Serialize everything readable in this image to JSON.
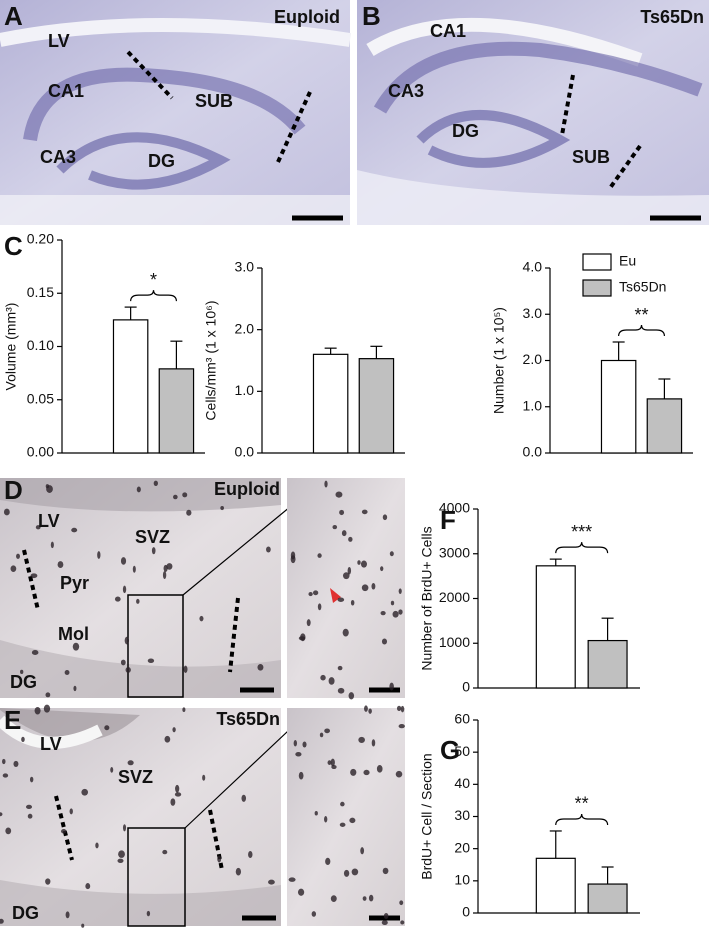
{
  "panels": [
    {
      "label": "A",
      "title": "Euploid",
      "regions": [
        "LV",
        "CA1",
        "SUB",
        "CA3",
        "DG"
      ]
    },
    {
      "label": "B",
      "title": "Ts65Dn",
      "regions": [
        "CA1",
        "CA3",
        "DG",
        "SUB"
      ]
    },
    {
      "label": "D",
      "title": "Euploid",
      "regions": [
        "LV",
        "SVZ",
        "Pyr",
        "Mol",
        "DG"
      ]
    },
    {
      "label": "E",
      "title": "Ts65Dn",
      "regions": [
        "LV",
        "SVZ",
        "DG"
      ]
    }
  ],
  "chart_data": [
    {
      "type": "bar",
      "panel_label": "C",
      "ylabel": "Volume (mm³)",
      "ylim": [
        0,
        0.2
      ],
      "yticks": [
        {
          "value": 0,
          "label": "0.00"
        },
        {
          "value": 0.05,
          "label": "0.05"
        },
        {
          "value": 0.1,
          "label": "0.10"
        },
        {
          "value": 0.15,
          "label": "0.15"
        },
        {
          "value": 0.2,
          "label": "0.20"
        }
      ],
      "values": [
        0.125,
        0.079
      ],
      "errors": [
        0.012,
        0.026
      ],
      "colors": [
        "#ffffff",
        "#c0c0c0"
      ],
      "significance": "*"
    },
    {
      "type": "bar",
      "ylabel": "Cells/mm³ (1 x 10⁶)",
      "ylim": [
        0,
        3
      ],
      "yticks": [
        {
          "value": 0,
          "label": "0.0"
        },
        {
          "value": 1,
          "label": "1.0"
        },
        {
          "value": 2,
          "label": "2.0"
        },
        {
          "value": 3,
          "label": "3.0"
        }
      ],
      "values": [
        1.6,
        1.53
      ],
      "errors": [
        0.1,
        0.2
      ],
      "colors": [
        "#ffffff",
        "#c0c0c0"
      ]
    },
    {
      "type": "bar",
      "ylabel": "Number (1 x 10⁵)",
      "ylim": [
        0,
        4
      ],
      "yticks": [
        {
          "value": 0,
          "label": "0.0"
        },
        {
          "value": 1,
          "label": "1.0"
        },
        {
          "value": 2,
          "label": "2.0"
        },
        {
          "value": 3,
          "label": "3.0"
        },
        {
          "value": 4,
          "label": "4.0"
        }
      ],
      "values": [
        2.0,
        1.17
      ],
      "errors": [
        0.4,
        0.43
      ],
      "colors": [
        "#ffffff",
        "#c0c0c0"
      ],
      "legend": [
        "Eu",
        "Ts65Dn"
      ],
      "significance": "**"
    },
    {
      "type": "bar",
      "panel_label": "F",
      "ylabel": "Number of BrdU+ Cells",
      "ylim": [
        0,
        4000
      ],
      "yticks": [
        0,
        1000,
        2000,
        3000,
        4000
      ],
      "values": [
        2730,
        1060
      ],
      "errors": [
        150,
        500
      ],
      "colors": [
        "#ffffff",
        "#c0c0c0"
      ],
      "significance": "***"
    },
    {
      "type": "bar",
      "panel_label": "G",
      "ylabel": "BrdU+ Cell / Section",
      "ylim": [
        0,
        60
      ],
      "yticks": [
        0,
        10,
        20,
        30,
        40,
        50,
        60
      ],
      "values": [
        17,
        9
      ],
      "errors": [
        8.5,
        5.3
      ],
      "colors": [
        "#ffffff",
        "#c0c0c0"
      ],
      "significance": "**"
    }
  ]
}
